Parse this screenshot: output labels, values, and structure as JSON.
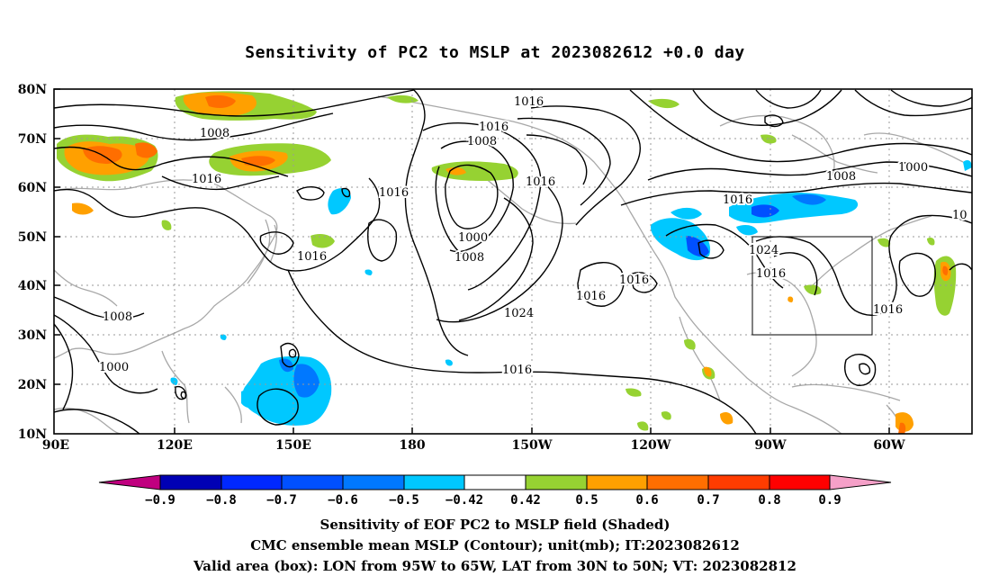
{
  "title": "Sensitivity of PC2 to MSLP at 2023082612 +0.0 day",
  "lat_labels": [
    "80N",
    "70N",
    "60N",
    "50N",
    "40N",
    "30N",
    "20N",
    "10N"
  ],
  "lon_labels": [
    "90E",
    "120E",
    "150E",
    "180",
    "150W",
    "120W",
    "90W",
    "60W"
  ],
  "contour_labels": [
    "1016",
    "1016",
    "1008",
    "1008",
    "1016",
    "1016",
    "1000",
    "1008",
    "1016",
    "1016",
    "1016",
    "1024",
    "1016",
    "1016",
    "1008",
    "1000",
    "1016",
    "1024",
    "1016",
    "1016",
    "10",
    "1008",
    "1000"
  ],
  "colorbar": {
    "colors": [
      "#c0007f",
      "#0000b4",
      "#0028ff",
      "#0050ff",
      "#0078ff",
      "#00c8ff",
      "#ffffff",
      "#96d232",
      "#ffa000",
      "#ff6e00",
      "#ff3c00",
      "#ff0000",
      "#f5a0c8"
    ],
    "labels": [
      "−0.9",
      "−0.8",
      "−0.7",
      "−0.6",
      "−0.5",
      "−0.42",
      "0.42",
      "0.5",
      "0.6",
      "0.7",
      "0.8",
      "0.9"
    ]
  },
  "box": {
    "lon_from": "95W",
    "lon_to": "65W",
    "lat_from": "30N",
    "lat_to": "50N"
  },
  "caption1": "Sensitivity of EOF PC2 to MSLP field (Shaded)",
  "caption2": "CMC ensemble mean MSLP (Contour); unit(mb); IT:2023082612",
  "caption3": "Valid area (box): LON from 95W to 65W, LAT from 30N to 50N; VT: 2023082812"
}
